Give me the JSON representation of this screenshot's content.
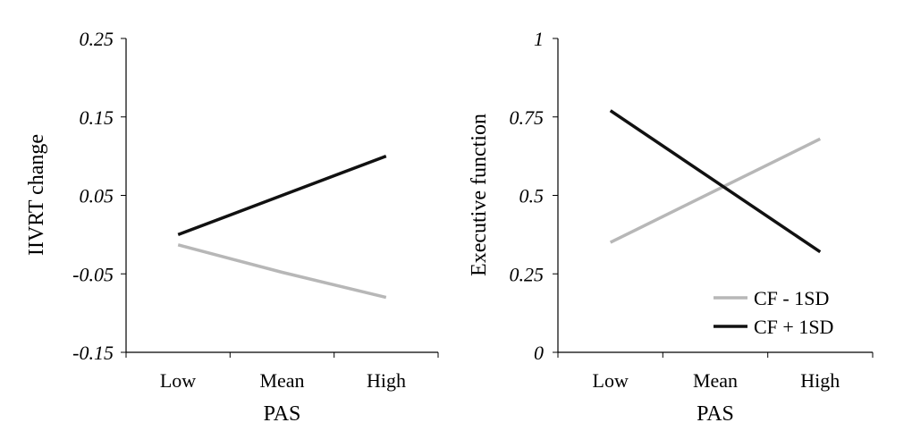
{
  "chart_data": [
    {
      "type": "line",
      "title": "",
      "xlabel": "PAS",
      "ylabel": "IIVRT change",
      "categories": [
        "Low",
        "Mean",
        "High"
      ],
      "ylim": [
        -0.15,
        0.25
      ],
      "yticks": [
        "0.25",
        "0.15",
        "0.05",
        "-0.05",
        "-0.15"
      ],
      "ytick_values": [
        0.25,
        0.15,
        0.05,
        -0.05,
        -0.15
      ],
      "grid": false,
      "legend": false,
      "series": [
        {
          "name": "CF - 1SD",
          "color": "#b7b7b7",
          "values": [
            -0.013,
            -0.048,
            -0.08
          ]
        },
        {
          "name": "CF + 1SD",
          "color": "#111111",
          "values": [
            0.0,
            0.05,
            0.1
          ]
        }
      ]
    },
    {
      "type": "line",
      "title": "",
      "xlabel": "PAS",
      "ylabel": "Executive function",
      "categories": [
        "Low",
        "Mean",
        "High"
      ],
      "ylim": [
        0,
        1
      ],
      "yticks": [
        "1",
        "0.75",
        "0.5",
        "0.25",
        "0"
      ],
      "ytick_values": [
        1,
        0.75,
        0.5,
        0.25,
        0
      ],
      "grid": false,
      "legend": "bottom-right",
      "series": [
        {
          "name": "CF - 1SD",
          "color": "#b7b7b7",
          "values": [
            0.35,
            0.515,
            0.68
          ]
        },
        {
          "name": "CF + 1SD",
          "color": "#111111",
          "values": [
            0.77,
            0.545,
            0.32
          ]
        }
      ]
    }
  ]
}
